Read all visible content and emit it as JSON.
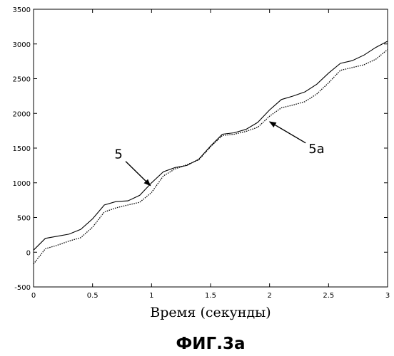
{
  "chart_data": {
    "type": "line",
    "xlabel": "Время (секунды)",
    "ylabel": "",
    "xlim": [
      0,
      3
    ],
    "ylim": [
      -500,
      3500
    ],
    "xticks": [
      "0",
      "0.5",
      "1",
      "1.5",
      "2",
      "2.5",
      "3"
    ],
    "yticks": [
      "-500",
      "0",
      "500",
      "1000",
      "1500",
      "2000",
      "2500",
      "3000",
      "3500"
    ],
    "grid": false,
    "series": [
      {
        "name": "5",
        "style": "solid",
        "x": [
          0,
          0.1,
          0.2,
          0.3,
          0.4,
          0.5,
          0.6,
          0.7,
          0.8,
          0.9,
          1.0,
          1.1,
          1.2,
          1.3,
          1.4,
          1.5,
          1.6,
          1.7,
          1.8,
          1.9,
          2.0,
          2.1,
          2.2,
          2.3,
          2.4,
          2.5,
          2.6,
          2.7,
          2.8,
          2.9,
          3.0
        ],
        "y": [
          30,
          200,
          230,
          260,
          330,
          480,
          680,
          730,
          740,
          820,
          1000,
          1160,
          1220,
          1250,
          1340,
          1530,
          1700,
          1720,
          1770,
          1870,
          2050,
          2200,
          2250,
          2310,
          2420,
          2580,
          2720,
          2760,
          2840,
          2950,
          3040
        ]
      },
      {
        "name": "5a",
        "style": "dotted",
        "x": [
          0,
          0.1,
          0.2,
          0.3,
          0.4,
          0.5,
          0.6,
          0.7,
          0.8,
          0.9,
          1.0,
          1.1,
          1.2,
          1.3,
          1.4,
          1.5,
          1.6,
          1.7,
          1.8,
          1.9,
          2.0,
          2.1,
          2.2,
          2.3,
          2.4,
          2.5,
          2.6,
          2.7,
          2.8,
          2.9,
          3.0
        ],
        "y": [
          -170,
          50,
          100,
          160,
          210,
          360,
          580,
          640,
          680,
          720,
          860,
          1100,
          1200,
          1260,
          1330,
          1520,
          1680,
          1700,
          1740,
          1800,
          1960,
          2080,
          2120,
          2170,
          2280,
          2440,
          2620,
          2660,
          2700,
          2780,
          2920
        ]
      }
    ],
    "annotations": [
      {
        "text": "5",
        "x": 0.72,
        "y": 1350,
        "arrow_to": [
          0.99,
          960
        ]
      },
      {
        "text": "5a",
        "x": 2.33,
        "y": 1430,
        "arrow_to": [
          2.0,
          1880
        ]
      }
    ],
    "caption": "ФИГ.3а"
  }
}
